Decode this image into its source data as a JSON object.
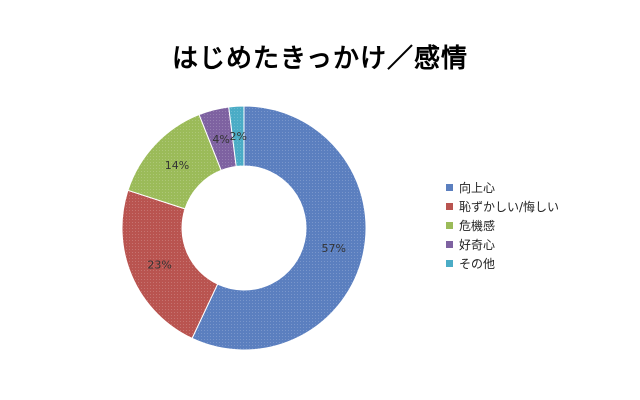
{
  "chart_data": {
    "type": "pie",
    "title": "はじめたきっかけ／感情",
    "categories": [
      "向上心",
      "恥ずかしい/悔しい",
      "危機感",
      "好奇心",
      "その他"
    ],
    "values": [
      57,
      23,
      14,
      4,
      2
    ],
    "data_labels": [
      "57%",
      "23%",
      "14%",
      "4%",
      "2%"
    ],
    "colors": [
      "#5b7fbf",
      "#b95450",
      "#9bbb59",
      "#7e62a1",
      "#4bacc6"
    ],
    "donut": true,
    "legend_position": "right"
  }
}
